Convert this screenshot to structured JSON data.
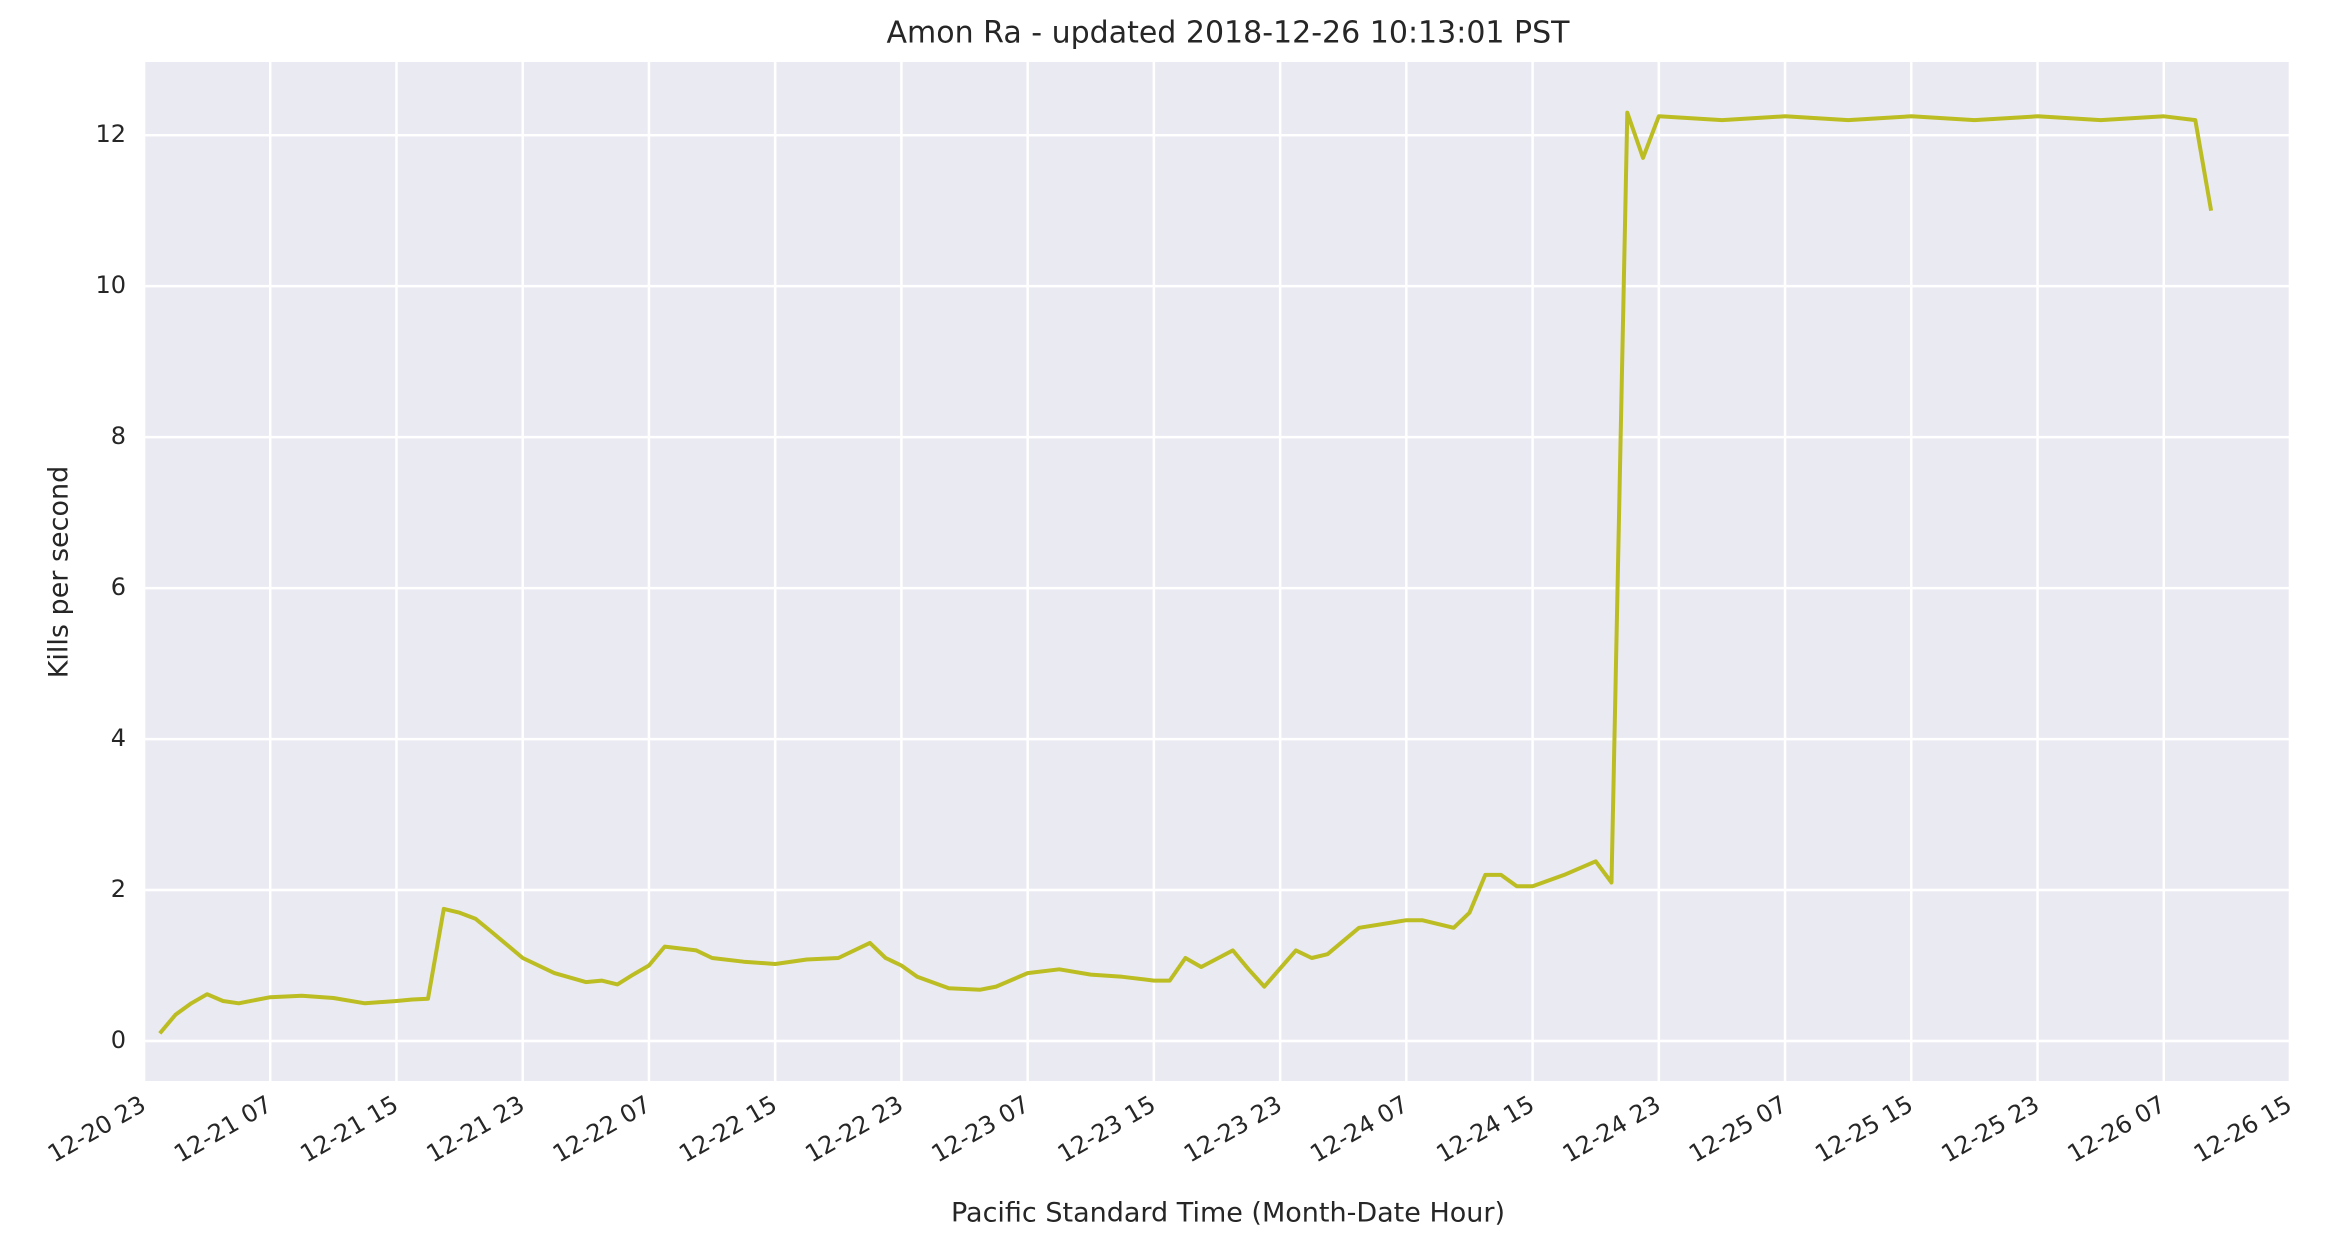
{
  "chart_data": {
    "type": "line",
    "title": "Amon Ra - updated 2018-12-26 10:13:01 PST",
    "x_label": "Pacific Standard Time (Month-Date Hour)",
    "y_label": "Kills per second",
    "color": "#bcbd22",
    "grid": true,
    "x": [
      "12-21 00",
      "12-21 01",
      "12-21 02",
      "12-21 03",
      "12-21 04",
      "12-21 05",
      "12-21 07",
      "12-21 09",
      "12-21 11",
      "12-21 13",
      "12-21 15",
      "12-21 16",
      "12-21 17",
      "12-21 18",
      "12-21 19",
      "12-21 20",
      "12-21 21",
      "12-21 23",
      "12-22 01",
      "12-22 03",
      "12-22 04",
      "12-22 05",
      "12-22 06",
      "12-22 07",
      "12-22 08",
      "12-22 10",
      "12-22 11",
      "12-22 13",
      "12-22 15",
      "12-22 17",
      "12-22 19",
      "12-22 21",
      "12-22 22",
      "12-22 23",
      "12-23 00",
      "12-23 02",
      "12-23 04",
      "12-23 05",
      "12-23 07",
      "12-23 09",
      "12-23 11",
      "12-23 13",
      "12-23 15",
      "12-23 16",
      "12-23 17",
      "12-23 18",
      "12-23 20",
      "12-23 21",
      "12-23 22",
      "12-24 00",
      "12-24 01",
      "12-24 02",
      "12-24 04",
      "12-24 07",
      "12-24 08",
      "12-24 10",
      "12-24 11",
      "12-24 12",
      "12-24 13",
      "12-24 14",
      "12-24 15",
      "12-24 17",
      "12-24 19",
      "12-24 20",
      "12-24 21",
      "12-24 22",
      "12-24 23",
      "12-25 03",
      "12-25 07",
      "12-25 11",
      "12-25 15",
      "12-25 19",
      "12-25 23",
      "12-26 03",
      "12-26 07",
      "12-26 09",
      "12-26 10"
    ],
    "values": [
      0.1,
      0.35,
      0.5,
      0.62,
      0.53,
      0.5,
      0.58,
      0.6,
      0.57,
      0.5,
      0.53,
      0.55,
      0.56,
      1.75,
      1.7,
      1.62,
      1.45,
      1.1,
      0.9,
      0.78,
      0.8,
      0.75,
      0.88,
      1.0,
      1.25,
      1.2,
      1.1,
      1.05,
      1.02,
      1.08,
      1.1,
      1.3,
      1.1,
      1.0,
      0.85,
      0.7,
      0.68,
      0.72,
      0.9,
      0.95,
      0.88,
      0.85,
      0.8,
      0.8,
      1.1,
      0.98,
      1.2,
      0.95,
      0.72,
      1.2,
      1.1,
      1.15,
      1.5,
      1.6,
      1.6,
      1.5,
      1.7,
      2.2,
      2.2,
      2.05,
      2.05,
      2.2,
      2.38,
      2.1,
      12.3,
      11.7,
      12.25,
      12.2,
      12.25,
      12.2,
      12.25,
      12.2,
      12.25,
      12.2,
      12.25,
      12.2,
      11.0
    ],
    "xlim": [
      "12-20 23",
      "12-26 15"
    ],
    "xticks": [
      "12-20 23",
      "12-21 07",
      "12-21 15",
      "12-21 23",
      "12-22 07",
      "12-22 15",
      "12-22 23",
      "12-23 07",
      "12-23 15",
      "12-23 23",
      "12-24 07",
      "12-24 15",
      "12-24 23",
      "12-25 07",
      "12-25 15",
      "12-25 23",
      "12-26 07",
      "12-26 15"
    ],
    "ylim": [
      -0.53,
      12.97
    ],
    "yticks": [
      0,
      2,
      4,
      6,
      8,
      10,
      12
    ]
  }
}
